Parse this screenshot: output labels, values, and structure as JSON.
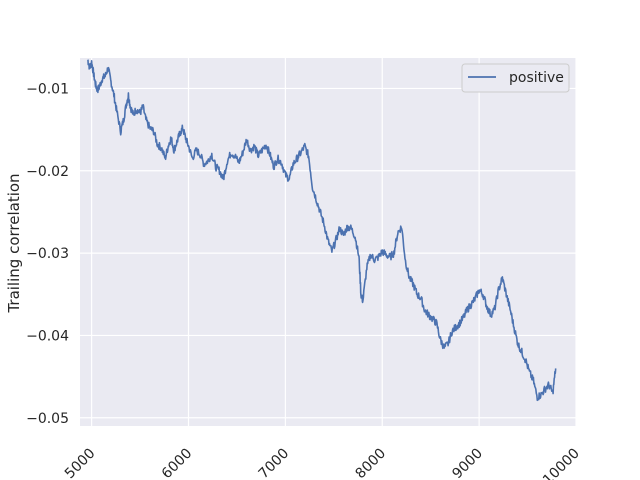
{
  "chart_data": {
    "type": "line",
    "title": "",
    "xlabel": "",
    "ylabel": "Trailing correlation",
    "xlim": [
      4880,
      10000
    ],
    "ylim": [
      -0.051,
      -0.0063
    ],
    "xticks": [
      5000,
      6000,
      7000,
      8000,
      9000,
      10000
    ],
    "xtick_labels": [
      "5000",
      "6000",
      "7000",
      "8000",
      "9000",
      "10000"
    ],
    "yticks": [
      -0.01,
      -0.02,
      -0.03,
      -0.04,
      -0.05
    ],
    "ytick_labels": [
      "−0.01",
      "−0.02",
      "−0.03",
      "−0.04",
      "−0.05"
    ],
    "grid": true,
    "legend_position": "top-right",
    "series": [
      {
        "name": "positive",
        "color": "#4c72b0",
        "x": [
          4960,
          4980,
          5000,
          5020,
          5040,
          5060,
          5080,
          5110,
          5140,
          5170,
          5200,
          5230,
          5260,
          5300,
          5330,
          5360,
          5380,
          5400,
          5430,
          5460,
          5500,
          5530,
          5560,
          5600,
          5640,
          5680,
          5720,
          5760,
          5790,
          5820,
          5850,
          5880,
          5910,
          5940,
          5970,
          6000,
          6040,
          6080,
          6120,
          6160,
          6200,
          6240,
          6280,
          6320,
          6360,
          6400,
          6440,
          6480,
          6520,
          6560,
          6600,
          6640,
          6680,
          6720,
          6760,
          6800,
          6840,
          6880,
          6920,
          6960,
          7000,
          7040,
          7080,
          7120,
          7160,
          7200,
          7240,
          7280,
          7320,
          7360,
          7400,
          7440,
          7480,
          7520,
          7560,
          7600,
          7640,
          7680,
          7720,
          7760,
          7780,
          7800,
          7840,
          7880,
          7920,
          7960,
          8000,
          8040,
          8080,
          8120,
          8160,
          8200,
          8240,
          8280,
          8320,
          8360,
          8400,
          8440,
          8480,
          8520,
          8560,
          8600,
          8640,
          8680,
          8720,
          8760,
          8800,
          8840,
          8880,
          8920,
          8960,
          9000,
          9040,
          9080,
          9120,
          9160,
          9200,
          9240,
          9280,
          9320,
          9360,
          9400,
          9440,
          9480,
          9520,
          9560,
          9600,
          9640,
          9680,
          9720,
          9760,
          9790
        ],
        "values": [
          -0.0065,
          -0.0075,
          -0.0068,
          -0.0082,
          -0.0095,
          -0.0102,
          -0.0098,
          -0.0088,
          -0.0085,
          -0.0075,
          -0.0092,
          -0.0108,
          -0.0128,
          -0.0152,
          -0.0138,
          -0.0118,
          -0.0108,
          -0.0122,
          -0.0132,
          -0.0125,
          -0.013,
          -0.0122,
          -0.0138,
          -0.0148,
          -0.0152,
          -0.0168,
          -0.0172,
          -0.0185,
          -0.017,
          -0.016,
          -0.0175,
          -0.0165,
          -0.0155,
          -0.0148,
          -0.016,
          -0.017,
          -0.0185,
          -0.0175,
          -0.018,
          -0.0192,
          -0.0188,
          -0.018,
          -0.0195,
          -0.02,
          -0.021,
          -0.0188,
          -0.0178,
          -0.0182,
          -0.019,
          -0.0178,
          -0.0162,
          -0.0175,
          -0.017,
          -0.0182,
          -0.0175,
          -0.0168,
          -0.018,
          -0.0195,
          -0.0185,
          -0.019,
          -0.0205,
          -0.021,
          -0.0192,
          -0.0185,
          -0.0178,
          -0.017,
          -0.0182,
          -0.022,
          -0.0235,
          -0.025,
          -0.0265,
          -0.0285,
          -0.0298,
          -0.0285,
          -0.027,
          -0.0278,
          -0.0268,
          -0.027,
          -0.028,
          -0.0305,
          -0.035,
          -0.0358,
          -0.0318,
          -0.0302,
          -0.0308,
          -0.0305,
          -0.0298,
          -0.0302,
          -0.0305,
          -0.03,
          -0.0275,
          -0.0268,
          -0.031,
          -0.033,
          -0.0338,
          -0.035,
          -0.0355,
          -0.037,
          -0.0375,
          -0.038,
          -0.0385,
          -0.0405,
          -0.0415,
          -0.041,
          -0.0395,
          -0.039,
          -0.0385,
          -0.0378,
          -0.0368,
          -0.0362,
          -0.0355,
          -0.0345,
          -0.035,
          -0.0365,
          -0.0375,
          -0.0368,
          -0.0345,
          -0.033,
          -0.035,
          -0.0368,
          -0.039,
          -0.041,
          -0.042,
          -0.043,
          -0.0445,
          -0.0455,
          -0.0475,
          -0.0472,
          -0.0465,
          -0.046,
          -0.047,
          -0.044
        ]
      }
    ]
  }
}
